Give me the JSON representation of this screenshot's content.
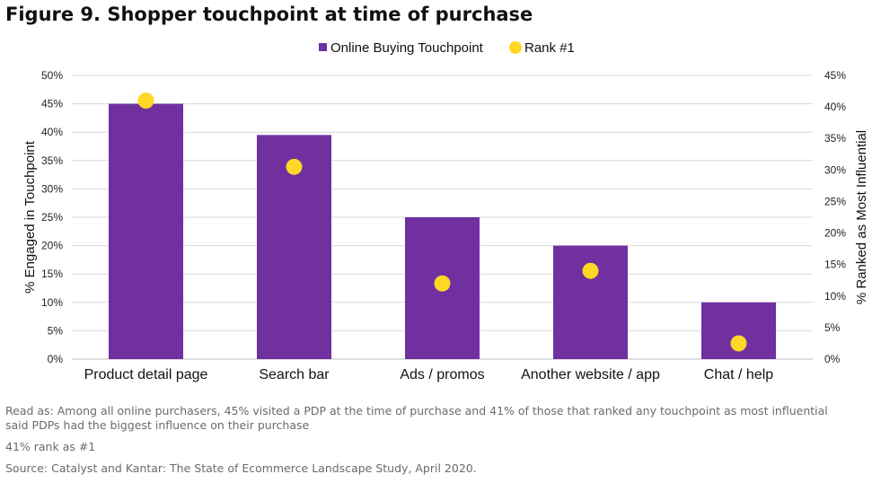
{
  "title": "Figure 9. Shopper touchpoint at time of purchase",
  "chart_data": {
    "type": "bar",
    "categories": [
      "Product detail page",
      "Search bar",
      "Ads / promos",
      "Another website / app",
      "Chat / help"
    ],
    "series": [
      {
        "name": "Online Buying Touchpoint",
        "type": "bar",
        "axis": "left",
        "color": "#7030A0",
        "values": [
          45,
          39.5,
          25,
          20,
          10
        ]
      },
      {
        "name": "Rank #1",
        "type": "scatter",
        "axis": "right",
        "color": "#FFD726",
        "values": [
          41,
          30.5,
          12,
          14,
          2.5
        ]
      }
    ],
    "ylabel": "% Engaged in Touchpoint",
    "y2label": "% Ranked as Most Influential",
    "ylim": [
      0,
      50
    ],
    "y2lim": [
      0,
      45
    ],
    "yticks": [
      "0%",
      "5%",
      "10%",
      "15%",
      "20%",
      "25%",
      "30%",
      "35%",
      "40%",
      "45%",
      "50%"
    ],
    "y2ticks": [
      "0%",
      "5%",
      "10%",
      "15%",
      "20%",
      "25%",
      "30%",
      "35%",
      "40%",
      "45%"
    ],
    "grid": true,
    "legend": "top-center"
  },
  "notes": {
    "read_as": "Read as: Among all online purchasers, 45% visited a PDP at the time of purchase and 41% of those that ranked any touchpoint as most influential said PDPs had the biggest influence on their purchase",
    "rank_note": "41% rank as #1",
    "source": "Source: Catalyst and Kantar: The State of Ecommerce Landscape Study, April 2020."
  }
}
